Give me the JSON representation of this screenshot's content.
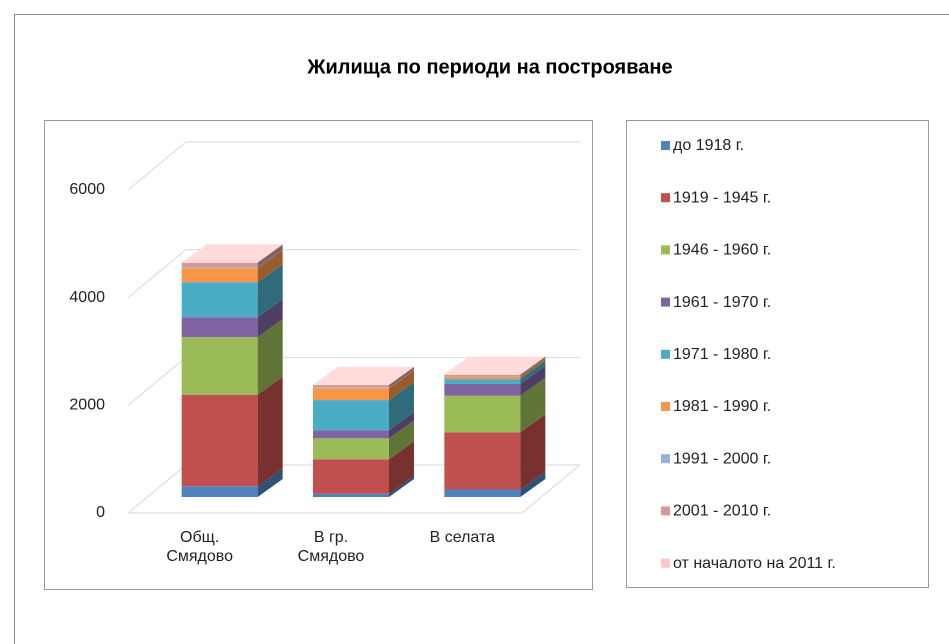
{
  "chart_data": {
    "type": "bar3d_stacked",
    "title": "Жилища по периоди на построяване",
    "categories": [
      "Общ. Смядово",
      "В гр. Смядово",
      "В селата"
    ],
    "series": [
      {
        "name": "до 1918 г.",
        "color": "#4f81bd",
        "values": [
          200,
          60,
          140
        ]
      },
      {
        "name": "1919 - 1945 г.",
        "color": "#c0504d",
        "values": [
          1700,
          640,
          1060
        ]
      },
      {
        "name": "1946 - 1960 г.",
        "color": "#9bbb59",
        "values": [
          1070,
          390,
          680
        ]
      },
      {
        "name": "1961 - 1970 г.",
        "color": "#8064a2",
        "values": [
          370,
          150,
          220
        ]
      },
      {
        "name": "1971 - 1980 г.",
        "color": "#4bacc6",
        "values": [
          650,
          560,
          90
        ]
      },
      {
        "name": "1981 - 1990 г.",
        "color": "#f79646",
        "values": [
          260,
          220,
          40
        ]
      },
      {
        "name": "1991 - 2000 г.",
        "color": "#95b3d7",
        "values": [
          20,
          10,
          10
        ]
      },
      {
        "name": "2001 - 2010 г.",
        "color": "#d99694",
        "values": [
          80,
          50,
          30
        ]
      },
      {
        "name": "от началото на 2011 г.",
        "color": "#ffc7c7",
        "values": [
          10,
          5,
          5
        ]
      }
    ],
    "ylim": [
      0,
      6000
    ],
    "yticks": [
      0,
      2000,
      4000,
      6000
    ],
    "grid": true,
    "legend": "right"
  }
}
